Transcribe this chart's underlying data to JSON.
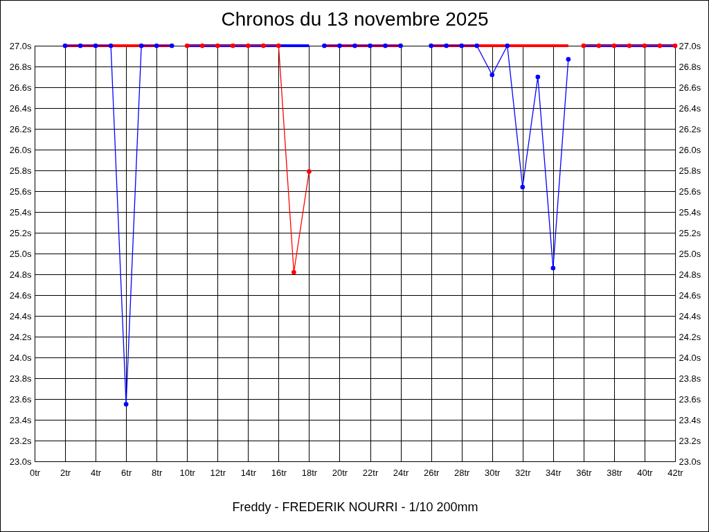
{
  "chart_data": {
    "type": "line",
    "title": "Chronos du 13 novembre 2025",
    "xlabel": "Freddy - FREDERIK NOURRI - 1/10 200mm",
    "series": [
      {
        "color": "#ff0000",
        "marker": "none",
        "x": [
          2,
          3,
          4,
          5,
          6,
          7,
          8,
          9
        ],
        "values": [
          27,
          27,
          27,
          27,
          27,
          27,
          27,
          27
        ]
      },
      {
        "color": "#0000ff",
        "x": [
          2,
          3,
          4,
          5,
          6,
          7,
          8,
          9
        ],
        "values": [
          27,
          27,
          27,
          27,
          23.55,
          27,
          27,
          27
        ]
      },
      {
        "color": "#0000ff",
        "marker": "none",
        "x": [
          10,
          11,
          12,
          13,
          14,
          15,
          16,
          17,
          18
        ],
        "values": [
          27,
          27,
          27,
          27,
          27,
          27,
          27,
          27,
          27
        ]
      },
      {
        "color": "#ff0000",
        "x": [
          10,
          11,
          12,
          13,
          14,
          15,
          16,
          17,
          18
        ],
        "values": [
          27,
          27,
          27,
          27,
          27,
          27,
          27,
          24.82,
          25.79
        ]
      },
      {
        "color": "#ff0000",
        "marker": "none",
        "x": [
          19,
          20,
          21,
          22,
          23,
          24
        ],
        "values": [
          27,
          27,
          27,
          27,
          27,
          27
        ]
      },
      {
        "color": "#0000ff",
        "x": [
          19,
          20,
          21,
          22,
          23,
          24
        ],
        "values": [
          27,
          27,
          27,
          27,
          27,
          27
        ]
      },
      {
        "color": "#ff0000",
        "marker": "none",
        "x": [
          26,
          27,
          28,
          29,
          30,
          31,
          32,
          33,
          34,
          35
        ],
        "values": [
          27,
          27,
          27,
          27,
          27,
          27,
          27,
          27,
          27,
          27
        ]
      },
      {
        "color": "#0000ff",
        "x": [
          26,
          27,
          28,
          29,
          30,
          31,
          32,
          33,
          34,
          35
        ],
        "values": [
          27,
          27,
          27,
          27,
          26.72,
          27,
          25.64,
          26.7,
          24.86,
          26.87
        ]
      },
      {
        "color": "#0000ff",
        "marker": "none",
        "x": [
          36,
          37,
          38,
          39,
          40,
          41,
          42
        ],
        "values": [
          27,
          27,
          27,
          27,
          27,
          27,
          27
        ]
      },
      {
        "color": "#ff0000",
        "x": [
          36,
          37,
          38,
          39,
          40,
          41,
          42
        ],
        "values": [
          27,
          27,
          27,
          27,
          27,
          27,
          27
        ]
      }
    ],
    "marker": "circle",
    "grid": true,
    "xlim": [
      0,
      42
    ],
    "xticks": [
      {
        "value": 0,
        "label": "0tr"
      },
      {
        "value": 2,
        "label": "2tr"
      },
      {
        "value": 4,
        "label": "4tr"
      },
      {
        "value": 6,
        "label": "6tr"
      },
      {
        "value": 8,
        "label": "8tr"
      },
      {
        "value": 10,
        "label": "10tr"
      },
      {
        "value": 12,
        "label": "12tr"
      },
      {
        "value": 14,
        "label": "14tr"
      },
      {
        "value": 16,
        "label": "16tr"
      },
      {
        "value": 18,
        "label": "18tr"
      },
      {
        "value": 20,
        "label": "20tr"
      },
      {
        "value": 22,
        "label": "22tr"
      },
      {
        "value": 24,
        "label": "24tr"
      },
      {
        "value": 26,
        "label": "26tr"
      },
      {
        "value": 28,
        "label": "28tr"
      },
      {
        "value": 30,
        "label": "30tr"
      },
      {
        "value": 32,
        "label": "32tr"
      },
      {
        "value": 34,
        "label": "34tr"
      },
      {
        "value": 36,
        "label": "36tr"
      },
      {
        "value": 38,
        "label": "38tr"
      },
      {
        "value": 40,
        "label": "40tr"
      },
      {
        "value": 42,
        "label": "42tr"
      }
    ],
    "ylim": [
      23,
      27
    ],
    "yticks": [
      {
        "value": 23,
        "label": "23.0s"
      },
      {
        "value": 23.2,
        "label": "23.2s"
      },
      {
        "value": 23.4,
        "label": "23.4s"
      },
      {
        "value": 23.6,
        "label": "23.6s"
      },
      {
        "value": 23.8,
        "label": "23.8s"
      },
      {
        "value": 24,
        "label": "24.0s"
      },
      {
        "value": 24.2,
        "label": "24.2s"
      },
      {
        "value": 24.4,
        "label": "24.4s"
      },
      {
        "value": 24.6,
        "label": "24.6s"
      },
      {
        "value": 24.8,
        "label": "24.8s"
      },
      {
        "value": 25,
        "label": "25.0s"
      },
      {
        "value": 25.2,
        "label": "25.2s"
      },
      {
        "value": 25.4,
        "label": "25.4s"
      },
      {
        "value": 25.6,
        "label": "25.6s"
      },
      {
        "value": 25.8,
        "label": "25.8s"
      },
      {
        "value": 26,
        "label": "26.0s"
      },
      {
        "value": 26.2,
        "label": "26.2s"
      },
      {
        "value": 26.4,
        "label": "26.4s"
      },
      {
        "value": 26.6,
        "label": "26.6s"
      },
      {
        "value": 26.8,
        "label": "26.8s"
      },
      {
        "value": 27,
        "label": "27.0s"
      }
    ],
    "y2lim": [
      23,
      27
    ],
    "y2ticks": [
      {
        "value": 23,
        "label": "23.0s"
      },
      {
        "value": 23.2,
        "label": "23.2s"
      },
      {
        "value": 23.4,
        "label": "23.4s"
      },
      {
        "value": 23.6,
        "label": "23.6s"
      },
      {
        "value": 23.8,
        "label": "23.8s"
      },
      {
        "value": 24,
        "label": "24.0s"
      },
      {
        "value": 24.2,
        "label": "24.2s"
      },
      {
        "value": 24.4,
        "label": "24.4s"
      },
      {
        "value": 24.6,
        "label": "24.6s"
      },
      {
        "value": 24.8,
        "label": "24.8s"
      },
      {
        "value": 25,
        "label": "25.0s"
      },
      {
        "value": 25.2,
        "label": "25.2s"
      },
      {
        "value": 25.4,
        "label": "25.4s"
      },
      {
        "value": 25.6,
        "label": "25.6s"
      },
      {
        "value": 25.8,
        "label": "25.8s"
      },
      {
        "value": 26,
        "label": "26.0s"
      },
      {
        "value": 26.2,
        "label": "26.2s"
      },
      {
        "value": 26.4,
        "label": "26.4s"
      },
      {
        "value": 26.6,
        "label": "26.6s"
      },
      {
        "value": 26.8,
        "label": "26.8s"
      },
      {
        "value": 27,
        "label": "27.0s"
      }
    ]
  }
}
